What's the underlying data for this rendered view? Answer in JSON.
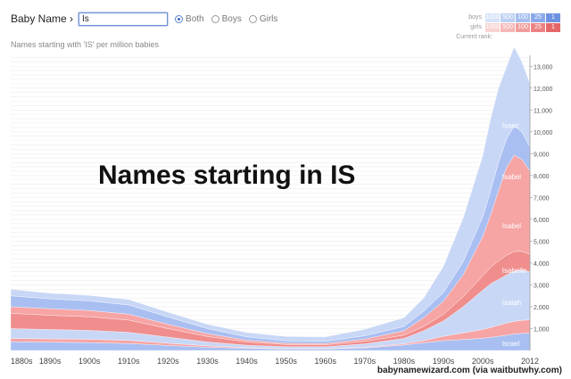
{
  "header": {
    "label": "Baby Name ›",
    "search_value": "Is"
  },
  "gender_filter": {
    "options": [
      "Both",
      "Boys",
      "Girls"
    ],
    "selected": "Both"
  },
  "subtitle": "Names starting with 'IS' per million babies",
  "rank_legend": {
    "boys_label": "boys",
    "girls_label": "girls",
    "current_rank_label": "Current rank:",
    "levels": [
      "1000",
      "500",
      "100",
      "25",
      "1"
    ],
    "boys_colors": [
      "#d6e2f8",
      "#bdd0f4",
      "#a5bef0",
      "#8aa9ea",
      "#6f93e2"
    ],
    "girls_colors": [
      "#f9d3d3",
      "#f5b8b8",
      "#f19d9d",
      "#ec8282",
      "#e56868"
    ]
  },
  "overlay_title": "Names starting in IS",
  "credit": "babynamewizard.com (via waitbutwhy.com)",
  "colors": {
    "boys": "#a9bff2",
    "girls": "#f6a4a4",
    "boys_light": "#c9d7f6",
    "girls_dark": "#f08d8d"
  },
  "chart_data": {
    "type": "area",
    "x_tick_labels": [
      "1880s",
      "1890s",
      "1900s",
      "1910s",
      "1920s",
      "1930s",
      "1940s",
      "1950s",
      "1960s",
      "1970s",
      "1980s",
      "1990s",
      "2000s",
      "2012"
    ],
    "y_ticks": [
      1000,
      2000,
      3000,
      4000,
      5000,
      6000,
      7000,
      8000,
      9000,
      10000,
      11000,
      12000,
      13000
    ],
    "y_tick_labels": [
      "1,000",
      "2,000",
      "3,000",
      "4,000",
      "5,000",
      "6,000",
      "7,000",
      "8,000",
      "9,000",
      "10,000",
      "11,000",
      "12,000",
      "13,000"
    ],
    "ylim": [
      0,
      13500
    ],
    "xlim": [
      1880,
      2012
    ],
    "grid": true,
    "stacked": true,
    "x": [
      1880,
      1890,
      1900,
      1910,
      1920,
      1930,
      1940,
      1950,
      1960,
      1970,
      1980,
      1985,
      1990,
      1995,
      2000,
      2002,
      2004,
      2006,
      2008,
      2010,
      2012
    ],
    "series": [
      {
        "name": "Israel",
        "gender": "boys",
        "values": [
          400,
          380,
          360,
          320,
          230,
          150,
          100,
          70,
          70,
          120,
          250,
          350,
          450,
          500,
          560,
          600,
          650,
          700,
          750,
          780,
          800
        ]
      },
      {
        "name": "",
        "gender": "girls",
        "values": [
          150,
          150,
          150,
          140,
          100,
          60,
          30,
          20,
          20,
          30,
          50,
          100,
          200,
          300,
          400,
          450,
          500,
          550,
          580,
          600,
          600
        ]
      },
      {
        "name": "Isaiah",
        "gender": "boys",
        "values": [
          450,
          430,
          410,
          370,
          280,
          180,
          110,
          80,
          80,
          150,
          250,
          450,
          700,
          1200,
          1800,
          2000,
          2100,
          2200,
          2300,
          2300,
          2200
        ]
      },
      {
        "name": "Isabelle",
        "gender": "girls",
        "values": [
          700,
          650,
          620,
          560,
          390,
          250,
          150,
          100,
          90,
          120,
          150,
          200,
          300,
          450,
          650,
          750,
          850,
          900,
          900,
          850,
          800
        ]
      },
      {
        "name": "Isabel",
        "gender": "girls",
        "values": [
          300,
          300,
          290,
          270,
          200,
          130,
          80,
          60,
          60,
          100,
          200,
          400,
          600,
          1000,
          1800,
          2400,
          3200,
          4000,
          4400,
          4200,
          3800
        ]
      },
      {
        "name": "Isabel",
        "gender": "boys",
        "values": [
          500,
          450,
          440,
          420,
          330,
          230,
          150,
          110,
          100,
          150,
          200,
          300,
          400,
          600,
          900,
          1100,
          1300,
          1300,
          1350,
          1250,
          1100
        ]
      },
      {
        "name": "Isaac",
        "gender": "boys",
        "values": [
          300,
          260,
          250,
          250,
          220,
          200,
          200,
          200,
          200,
          300,
          400,
          600,
          1200,
          2000,
          2800,
          3300,
          3400,
          3300,
          3600,
          3200,
          2900
        ]
      }
    ]
  }
}
